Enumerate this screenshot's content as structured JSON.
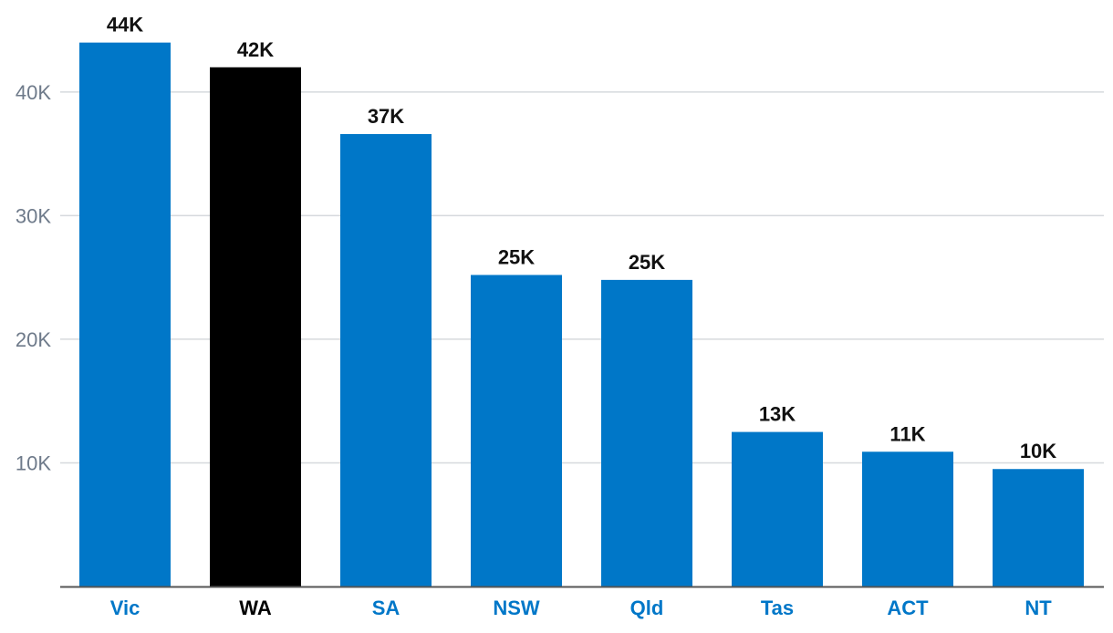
{
  "chart_data": {
    "type": "bar",
    "categories": [
      "Vic",
      "WA",
      "SA",
      "NSW",
      "Qld",
      "Tas",
      "ACT",
      "NT"
    ],
    "values": [
      44000,
      42000,
      36600,
      25200,
      24800,
      12500,
      10900,
      9500
    ],
    "data_labels": [
      "44K",
      "42K",
      "37K",
      "25K",
      "25K",
      "13K",
      "11K",
      "10K"
    ],
    "highlight_category": "WA",
    "colors": {
      "bar": "#0077c8",
      "highlight_bar": "#000000",
      "category_label": "#0077c8",
      "highlight_category_label": "#000000",
      "gridline": "#d6d9dd",
      "axis": "#555555",
      "tick_label": "#6e7a8a",
      "data_label": "#111111"
    },
    "y_ticks": [
      10000,
      20000,
      30000,
      40000
    ],
    "y_tick_labels": [
      "10K",
      "20K",
      "30K",
      "40K"
    ],
    "ylim": [
      0,
      47000
    ],
    "grid": true,
    "title": "",
    "xlabel": "",
    "ylabel": ""
  }
}
